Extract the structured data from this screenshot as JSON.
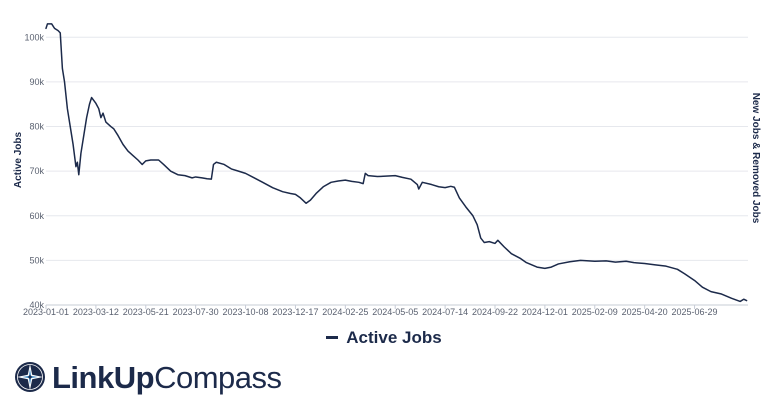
{
  "brand": {
    "name_bold": "LinkUp",
    "name_light": "Compass",
    "logo_icon": "compass-rose-icon"
  },
  "legend": {
    "label": "Active Jobs"
  },
  "chart_data": {
    "type": "line",
    "ylabel": "Active Jobs",
    "y2label": "New Jobs & Removed Jobs",
    "ylim": [
      40000,
      105000
    ],
    "yticks": [
      {
        "value": 40000,
        "label": "40k"
      },
      {
        "value": 50000,
        "label": "50k"
      },
      {
        "value": 60000,
        "label": "60k"
      },
      {
        "value": 70000,
        "label": "70k"
      },
      {
        "value": 80000,
        "label": "80k"
      },
      {
        "value": 90000,
        "label": "90k"
      },
      {
        "value": 100000,
        "label": "100k"
      }
    ],
    "xlim": [
      "2023-01-01",
      "2025-09-12"
    ],
    "xticks": [
      "2023-01-01",
      "2023-03-12",
      "2023-05-21",
      "2023-07-30",
      "2023-10-08",
      "2023-12-17",
      "2024-02-25",
      "2024-05-05",
      "2024-07-14",
      "2024-09-22",
      "2024-12-01",
      "2025-02-09",
      "2025-04-20",
      "2025-06-29"
    ],
    "grid": true,
    "legend_position": "bottom",
    "line_color": "#1c2a4a",
    "series": [
      {
        "name": "Active Jobs",
        "points": [
          [
            "2023-01-01",
            102000
          ],
          [
            "2023-01-03",
            103000
          ],
          [
            "2023-01-09",
            103000
          ],
          [
            "2023-01-13",
            102000
          ],
          [
            "2023-01-18",
            101500
          ],
          [
            "2023-01-21",
            101000
          ],
          [
            "2023-01-24",
            93000
          ],
          [
            "2023-01-27",
            90000
          ],
          [
            "2023-01-31",
            84000
          ],
          [
            "2023-02-04",
            80000
          ],
          [
            "2023-02-08",
            76000
          ],
          [
            "2023-02-12",
            71000
          ],
          [
            "2023-02-14",
            72000
          ],
          [
            "2023-02-16",
            69200
          ],
          [
            "2023-02-19",
            74000
          ],
          [
            "2023-02-23",
            78000
          ],
          [
            "2023-02-27",
            82000
          ],
          [
            "2023-03-03",
            85000
          ],
          [
            "2023-03-06",
            86500
          ],
          [
            "2023-03-12",
            85200
          ],
          [
            "2023-03-16",
            84000
          ],
          [
            "2023-03-19",
            82000
          ],
          [
            "2023-03-22",
            83000
          ],
          [
            "2023-03-26",
            81000
          ],
          [
            "2023-04-02",
            80000
          ],
          [
            "2023-04-06",
            79500
          ],
          [
            "2023-04-12",
            78000
          ],
          [
            "2023-04-19",
            76000
          ],
          [
            "2023-04-26",
            74500
          ],
          [
            "2023-05-03",
            73500
          ],
          [
            "2023-05-10",
            72500
          ],
          [
            "2023-05-16",
            71500
          ],
          [
            "2023-05-21",
            72300
          ],
          [
            "2023-05-28",
            72500
          ],
          [
            "2023-06-08",
            72500
          ],
          [
            "2023-06-15",
            71500
          ],
          [
            "2023-06-25",
            70000
          ],
          [
            "2023-07-05",
            69200
          ],
          [
            "2023-07-15",
            69000
          ],
          [
            "2023-07-25",
            68500
          ],
          [
            "2023-07-30",
            68700
          ],
          [
            "2023-08-08",
            68500
          ],
          [
            "2023-08-15",
            68300
          ],
          [
            "2023-08-21",
            68200
          ],
          [
            "2023-08-24",
            71500
          ],
          [
            "2023-08-28",
            72000
          ],
          [
            "2023-09-08",
            71500
          ],
          [
            "2023-09-18",
            70500
          ],
          [
            "2023-09-28",
            70000
          ],
          [
            "2023-10-08",
            69500
          ],
          [
            "2023-10-20",
            68500
          ],
          [
            "2023-11-01",
            67500
          ],
          [
            "2023-11-15",
            66300
          ],
          [
            "2023-11-29",
            65400
          ],
          [
            "2023-12-10",
            65000
          ],
          [
            "2023-12-17",
            64800
          ],
          [
            "2023-12-24",
            64000
          ],
          [
            "2024-01-01",
            62800
          ],
          [
            "2024-01-07",
            63500
          ],
          [
            "2024-01-15",
            65000
          ],
          [
            "2024-01-25",
            66500
          ],
          [
            "2024-02-05",
            67500
          ],
          [
            "2024-02-15",
            67800
          ],
          [
            "2024-02-25",
            68000
          ],
          [
            "2024-03-05",
            67700
          ],
          [
            "2024-03-15",
            67500
          ],
          [
            "2024-03-21",
            67200
          ],
          [
            "2024-03-24",
            69500
          ],
          [
            "2024-03-28",
            69000
          ],
          [
            "2024-04-10",
            68800
          ],
          [
            "2024-04-25",
            68900
          ],
          [
            "2024-05-05",
            69000
          ],
          [
            "2024-05-15",
            68600
          ],
          [
            "2024-05-27",
            68200
          ],
          [
            "2024-06-05",
            67000
          ],
          [
            "2024-06-07",
            66000
          ],
          [
            "2024-06-12",
            67500
          ],
          [
            "2024-06-25",
            67000
          ],
          [
            "2024-07-05",
            66500
          ],
          [
            "2024-07-14",
            66300
          ],
          [
            "2024-07-22",
            66600
          ],
          [
            "2024-07-27",
            66400
          ],
          [
            "2024-08-03",
            64000
          ],
          [
            "2024-08-12",
            62000
          ],
          [
            "2024-08-22",
            60000
          ],
          [
            "2024-08-28",
            58000
          ],
          [
            "2024-09-02",
            55000
          ],
          [
            "2024-09-07",
            54000
          ],
          [
            "2024-09-14",
            54200
          ],
          [
            "2024-09-22",
            53800
          ],
          [
            "2024-09-26",
            54500
          ],
          [
            "2024-10-05",
            53000
          ],
          [
            "2024-10-15",
            51500
          ],
          [
            "2024-10-27",
            50500
          ],
          [
            "2024-11-05",
            49500
          ],
          [
            "2024-11-20",
            48500
          ],
          [
            "2024-12-01",
            48200
          ],
          [
            "2024-12-10",
            48500
          ],
          [
            "2024-12-20",
            49200
          ],
          [
            "2025-01-05",
            49700
          ],
          [
            "2025-01-20",
            50000
          ],
          [
            "2025-02-09",
            49800
          ],
          [
            "2025-02-25",
            49900
          ],
          [
            "2025-03-10",
            49600
          ],
          [
            "2025-03-25",
            49800
          ],
          [
            "2025-04-05",
            49500
          ],
          [
            "2025-04-20",
            49300
          ],
          [
            "2025-05-05",
            49000
          ],
          [
            "2025-05-20",
            48700
          ],
          [
            "2025-06-05",
            48000
          ],
          [
            "2025-06-15",
            47000
          ],
          [
            "2025-06-29",
            45500
          ],
          [
            "2025-07-10",
            44000
          ],
          [
            "2025-07-22",
            43000
          ],
          [
            "2025-08-05",
            42500
          ],
          [
            "2025-08-20",
            41500
          ],
          [
            "2025-09-01",
            40800
          ],
          [
            "2025-09-06",
            41300
          ],
          [
            "2025-09-10",
            41000
          ]
        ]
      }
    ]
  }
}
